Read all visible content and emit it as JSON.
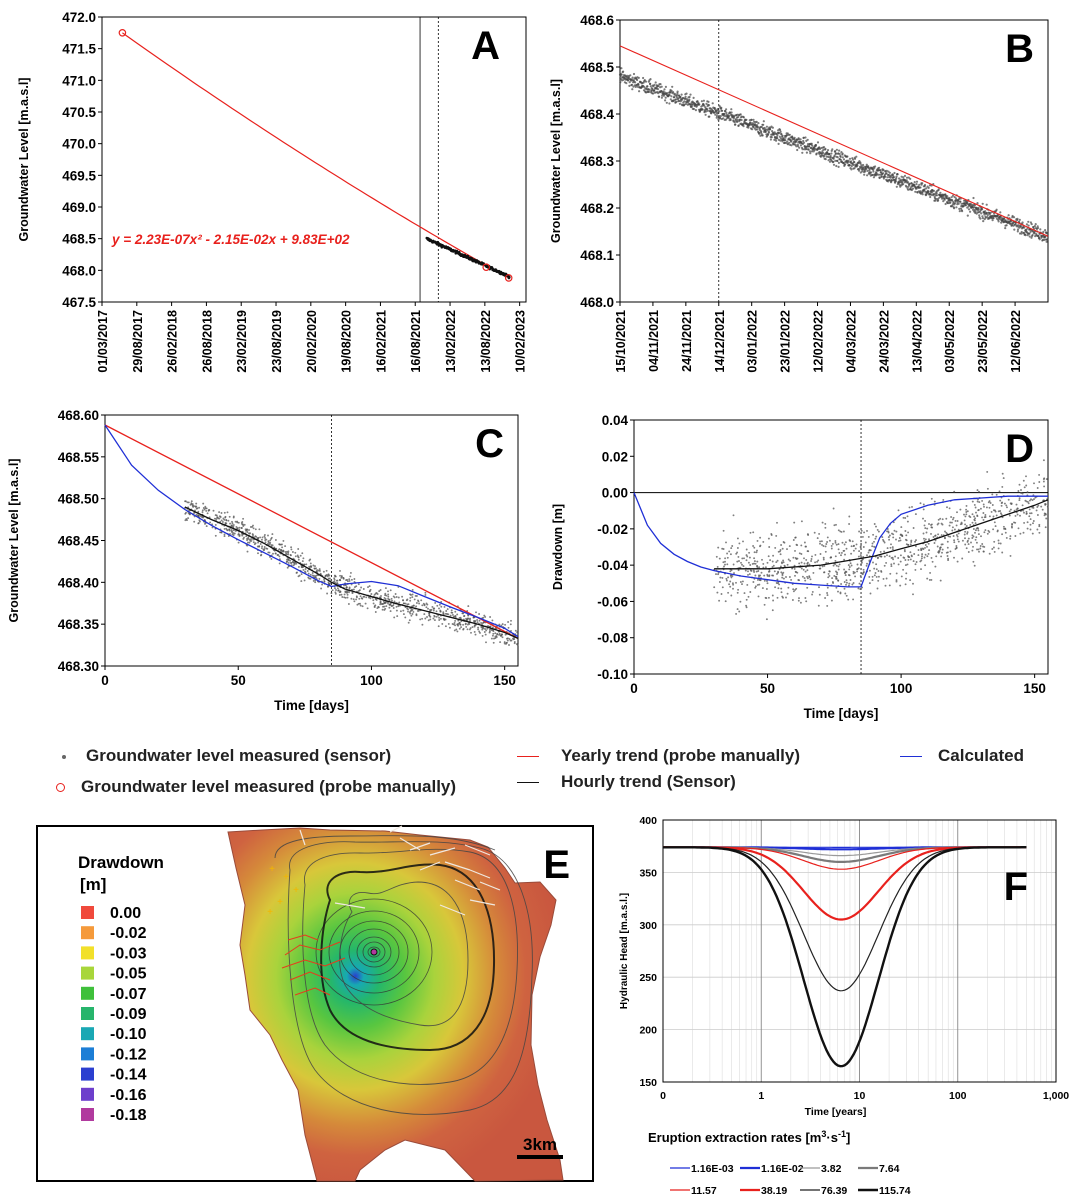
{
  "chart_data": [
    {
      "panel": "A",
      "type": "scatter",
      "panel_letter": "A",
      "ylabel": "Groundwater Level [m.a.s.l]",
      "ylim": [
        467.5,
        472.0
      ],
      "yticks": [
        "467.5",
        "468.0",
        "468.5",
        "469.0",
        "469.5",
        "470.0",
        "470.5",
        "471.0",
        "471.5",
        "472.0"
      ],
      "xticks": [
        "01/03/2017",
        "29/08/2017",
        "26/02/2018",
        "26/08/2018",
        "23/02/2019",
        "23/08/2019",
        "20/02/2020",
        "19/08/2020",
        "16/02/2021",
        "16/08/2021",
        "13/02/2022",
        "13/08/2022",
        "10/02/2023"
      ],
      "equation": "y = 2.23E-07x² - 2.15E-02x + 9.83E+02",
      "trend_y_start": 471.75,
      "trend_y_end": 467.9,
      "probe_points": [
        {
          "date": "2017-06-15",
          "y": 471.75
        },
        {
          "date": "2022-08-20",
          "y": 468.05
        },
        {
          "date": "2022-12-15",
          "y": 467.88
        }
      ],
      "sensor_range": {
        "from": "2021-10-15",
        "to": "2022-12-20",
        "y_from": 468.5,
        "y_to": 467.9
      },
      "vline_solid": "2021-09-10",
      "vline_dashed": "2021-12-14"
    },
    {
      "panel": "B",
      "type": "scatter",
      "panel_letter": "B",
      "ylabel": "Groundwater Level [m.a.s.l]",
      "ylim": [
        468.0,
        468.6
      ],
      "yticks": [
        "468.0",
        "468.1",
        "468.2",
        "468.3",
        "468.4",
        "468.5",
        "468.6"
      ],
      "xticks": [
        "15/10/2021",
        "04/11/2021",
        "24/11/2021",
        "14/12/2021",
        "03/01/2022",
        "23/01/2022",
        "12/02/2022",
        "04/03/2022",
        "24/03/2022",
        "13/04/2022",
        "03/05/2022",
        "23/05/2022",
        "12/06/2022"
      ],
      "trend": {
        "y_start": 468.545,
        "y_end": 468.14
      },
      "sensor": {
        "y_start": 468.48,
        "y_end": 468.14,
        "noise": 0.015
      },
      "vline_dashed_day": 60
    },
    {
      "panel": "C",
      "type": "line",
      "panel_letter": "C",
      "ylabel": "Groundwater Level [m.a.s.l]",
      "xlabel": "Time [days]",
      "xlim": [
        0,
        155
      ],
      "ylim": [
        468.3,
        468.6
      ],
      "xticks": [
        "0",
        "50",
        "100",
        "150"
      ],
      "yticks": [
        "468.30",
        "468.35",
        "468.40",
        "468.45",
        "468.50",
        "468.55",
        "468.60"
      ],
      "series": [
        {
          "name": "Yearly trend (probe manually)",
          "color": "#e8211d",
          "x": [
            0,
            155
          ],
          "y": [
            468.588,
            468.333
          ]
        },
        {
          "name": "Calculated",
          "color": "#1f2fd6",
          "x": [
            0,
            10,
            20,
            30,
            40,
            50,
            60,
            70,
            80,
            85,
            90,
            100,
            110,
            120,
            130,
            140,
            150,
            155
          ],
          "y": [
            468.588,
            468.54,
            468.51,
            468.487,
            468.468,
            468.451,
            468.435,
            468.419,
            468.402,
            468.395,
            468.398,
            468.401,
            468.396,
            468.383,
            468.37,
            468.358,
            468.345,
            468.335
          ]
        },
        {
          "name": "Hourly trend (Sensor)",
          "color": "#111111",
          "x": [
            30,
            40,
            50,
            60,
            70,
            80,
            85,
            90,
            100,
            110,
            120,
            130,
            140,
            150,
            155
          ],
          "y": [
            468.49,
            468.475,
            468.462,
            468.446,
            468.428,
            468.41,
            468.4,
            468.392,
            468.383,
            468.374,
            468.366,
            468.358,
            468.35,
            468.34,
            468.333
          ]
        }
      ],
      "sensor": {
        "x_from": 30,
        "x_to": 155,
        "noise": 0.015
      },
      "vline_dashed": 85
    },
    {
      "panel": "D",
      "type": "line",
      "panel_letter": "D",
      "ylabel": "Drawdown [m]",
      "xlabel": "Time [days]",
      "xlim": [
        0,
        155
      ],
      "ylim": [
        -0.1,
        0.04
      ],
      "xticks": [
        "0",
        "50",
        "100",
        "150"
      ],
      "yticks": [
        "-0.10",
        "-0.08",
        "-0.06",
        "-0.04",
        "-0.02",
        "0.00",
        "0.02",
        "0.04"
      ],
      "series": [
        {
          "name": "Calculated",
          "color": "#1f2fd6",
          "x": [
            0,
            5,
            10,
            15,
            20,
            25,
            30,
            40,
            50,
            60,
            70,
            80,
            85,
            88,
            92,
            96,
            100,
            110,
            120,
            130,
            140,
            150,
            155
          ],
          "y": [
            0,
            -0.018,
            -0.028,
            -0.034,
            -0.038,
            -0.041,
            -0.043,
            -0.046,
            -0.048,
            -0.05,
            -0.051,
            -0.052,
            -0.052,
            -0.04,
            -0.025,
            -0.017,
            -0.012,
            -0.007,
            -0.004,
            -0.003,
            -0.002,
            -0.002,
            -0.002
          ]
        },
        {
          "name": "Hourly trend (Sensor)",
          "color": "#111111",
          "x": [
            30,
            50,
            70,
            90,
            100,
            110,
            120,
            130,
            140,
            150,
            155
          ],
          "y": [
            -0.042,
            -0.042,
            -0.04,
            -0.035,
            -0.031,
            -0.027,
            -0.022,
            -0.017,
            -0.012,
            -0.007,
            -0.004
          ]
        }
      ],
      "zero_line": 0,
      "sensor": {
        "x_from": 30,
        "x_to": 155,
        "noise": 0.02
      },
      "vline_dashed": 85
    },
    {
      "panel": "E",
      "type": "heatmap",
      "panel_letter": "E",
      "legend_title": "Drawdown\n[m]",
      "legend_title_line1": "Drawdown",
      "legend_title_line2": "[m]",
      "legend": [
        {
          "label": "0.00",
          "color": "#f04a3c"
        },
        {
          "label": "-0.02",
          "color": "#f59a3b"
        },
        {
          "label": "-0.03",
          "color": "#f2e02a"
        },
        {
          "label": "-0.05",
          "color": "#a8d63a"
        },
        {
          "label": "-0.07",
          "color": "#3fc03b"
        },
        {
          "label": "-0.09",
          "color": "#27b56c"
        },
        {
          "label": "-0.10",
          "color": "#1aa8b4"
        },
        {
          "label": "-0.12",
          "color": "#1c7ed6"
        },
        {
          "label": "-0.14",
          "color": "#2b3fd0"
        },
        {
          "label": "-0.16",
          "color": "#6d3fcc"
        },
        {
          "label": "-0.18",
          "color": "#b13a9e"
        }
      ],
      "scale_label": "3km"
    },
    {
      "panel": "F",
      "type": "line",
      "panel_letter": "F",
      "ylabel": "Hydraulic Head [m.a.s.l.]",
      "xlabel": "Time [years]",
      "xscale": "log",
      "xlim": [
        0.1,
        1000
      ],
      "ylim": [
        150,
        400
      ],
      "xticks": [
        "0",
        "1",
        "10",
        "100",
        "1,000"
      ],
      "yticks": [
        "150",
        "200",
        "250",
        "300",
        "350",
        "400"
      ],
      "legend_title": "Eruption extraction rates [m³·s⁻¹]",
      "legend_title_text": "Eruption extraction rates [m",
      "legend_title_sup1": "3",
      "legend_title_mid": "·s",
      "legend_title_sup2": "-1",
      "legend_title_end": "]",
      "baseline": 374,
      "series": [
        {
          "name": "1.16E-03",
          "color": "#1f2fd6",
          "width": 1.2,
          "min": 373.9
        },
        {
          "name": "1.16E-02",
          "color": "#1f2fd6",
          "width": 2.2,
          "min": 372
        },
        {
          "name": "3.82",
          "color": "#9a9a9a",
          "width": 1.2,
          "min": 366
        },
        {
          "name": "7.64",
          "color": "#7a7a7a",
          "width": 2.2,
          "min": 360
        },
        {
          "name": "11.57",
          "color": "#e8211d",
          "width": 1.2,
          "min": 353
        },
        {
          "name": "38.19",
          "color": "#e8211d",
          "width": 2.2,
          "min": 305
        },
        {
          "name": "76.39",
          "color": "#222222",
          "width": 1.2,
          "min": 237
        },
        {
          "name": "115.74",
          "color": "#111111",
          "width": 2.4,
          "min": 165
        }
      ]
    }
  ],
  "legend_main": [
    {
      "label": "Groundwater level measured (sensor)",
      "symbol": "dot"
    },
    {
      "label": "Groundwater level measured (probe manually)",
      "symbol": "circle"
    },
    {
      "label": "Yearly trend (probe manually)",
      "symbol": "red-line"
    },
    {
      "label": "Hourly trend (Sensor)",
      "symbol": "black-line"
    },
    {
      "label": "Calculated",
      "symbol": "blue-line"
    }
  ],
  "colors": {
    "red": "#e8211d",
    "blue": "#1f2fd6",
    "black": "#111111",
    "sensor": "#555555"
  }
}
